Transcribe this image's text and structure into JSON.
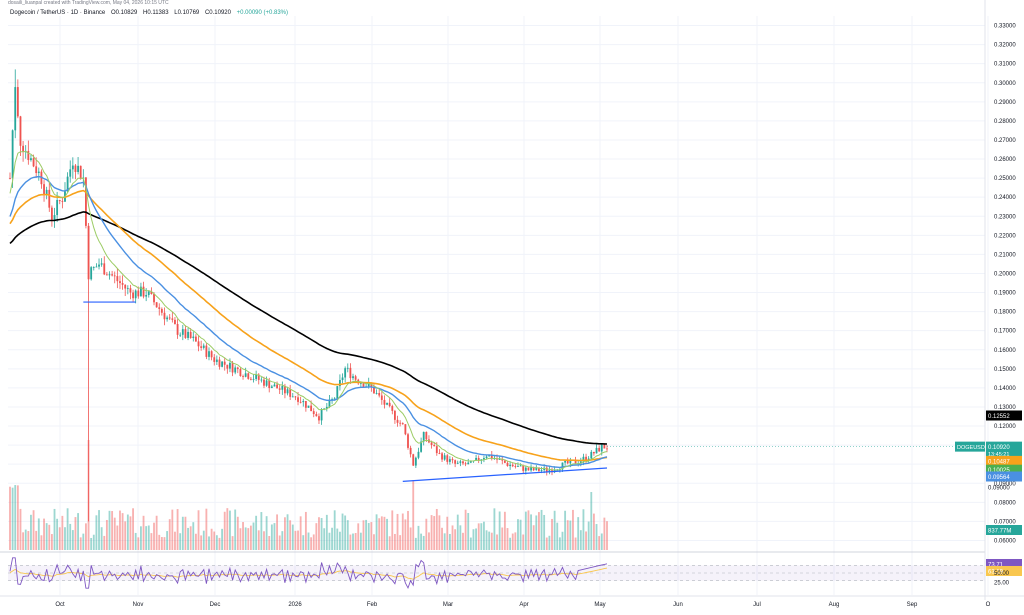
{
  "header": {
    "top_note": "dosaili_liuanpal created with TradingView.com, May 04, 2026 10:15 UTC",
    "symbol": "Dogecoin / TetherUS · 1D · Binance",
    "open": "O0.10829",
    "high": "H0.11383",
    "low": "L0.10769",
    "close": "C0.10920",
    "change": "+0.00090 (+0.83%)"
  },
  "colors": {
    "up": "#26a69a",
    "down": "#ef5350",
    "ma200": "#000000",
    "ma100": "#f7a21b",
    "ma50": "#4a90e2",
    "ma20": "#9ccc65",
    "rsi": "#7e57c2",
    "rsi_ma": "#f9c74f",
    "trendline": "#2962ff"
  },
  "price_labels": [
    {
      "key": "price",
      "text": "DOGEUSDT",
      "sub": "0.10920",
      "sub2": "13:45:21",
      "color": "#26a69a"
    },
    {
      "key": "ma200",
      "text": "0.12552",
      "color": "#000000"
    },
    {
      "key": "ma100",
      "text": "0.10487",
      "color": "#f7a21b"
    },
    {
      "key": "ma20",
      "text": "0.10025",
      "color": "#4caf50"
    },
    {
      "key": "ma50",
      "text": "0.09564",
      "color": "#4a90e2"
    },
    {
      "key": "low",
      "text": "0.09000",
      "color": "#2962ff"
    }
  ],
  "volume_label": "837.77M",
  "rsi_labels": {
    "rsi": "73.71",
    "ma": "63.19",
    "levels": [
      "50.00",
      "25.00"
    ]
  },
  "chart_data": {
    "type": "candlestick",
    "title": "Dogecoin / TetherUS · 1D · Binance",
    "y_axis": {
      "ticks": [
        "0.33000",
        "0.32000",
        "0.31000",
        "0.30000",
        "0.29000",
        "0.28000",
        "0.27000",
        "0.26000",
        "0.25000",
        "0.24000",
        "0.23000",
        "0.22000",
        "0.21000",
        "0.20000",
        "0.19000",
        "0.18000",
        "0.17000",
        "0.16000",
        "0.15000",
        "0.14000",
        "0.13000",
        "0.12000",
        "0.11000",
        "0.10000",
        "0.09000",
        "0.08000",
        "0.07000",
        "0.06000"
      ],
      "range": [
        0.055,
        0.335
      ],
      "scale": "linear"
    },
    "x_axis": {
      "labels": [
        "Oct",
        "Nov",
        "Dec",
        "2026",
        "Feb",
        "Mar",
        "Apr",
        "May",
        "Jun",
        "Jul",
        "Aug",
        "Sep",
        "O"
      ]
    },
    "price_path": [
      [
        0,
        0.25
      ],
      [
        2,
        0.3
      ],
      [
        4,
        0.27
      ],
      [
        8,
        0.26
      ],
      [
        12,
        0.25
      ],
      [
        16,
        0.23
      ],
      [
        20,
        0.24
      ],
      [
        24,
        0.26
      ],
      [
        28,
        0.25
      ],
      [
        30,
        0.2
      ],
      [
        34,
        0.205
      ],
      [
        38,
        0.2
      ],
      [
        42,
        0.195
      ],
      [
        46,
        0.19
      ],
      [
        52,
        0.19
      ],
      [
        58,
        0.18
      ],
      [
        64,
        0.17
      ],
      [
        70,
        0.165
      ],
      [
        78,
        0.155
      ],
      [
        86,
        0.15
      ],
      [
        94,
        0.145
      ],
      [
        102,
        0.14
      ],
      [
        110,
        0.135
      ],
      [
        118,
        0.125
      ],
      [
        124,
        0.135
      ],
      [
        128,
        0.15
      ],
      [
        132,
        0.145
      ],
      [
        138,
        0.14
      ],
      [
        144,
        0.13
      ],
      [
        150,
        0.12
      ],
      [
        154,
        0.1
      ],
      [
        158,
        0.115
      ],
      [
        164,
        0.105
      ],
      [
        170,
        0.1
      ],
      [
        176,
        0.1
      ],
      [
        182,
        0.105
      ],
      [
        190,
        0.1
      ],
      [
        198,
        0.097
      ],
      [
        206,
        0.097
      ],
      [
        212,
        0.1
      ],
      [
        218,
        0.102
      ],
      [
        222,
        0.105
      ],
      [
        226,
        0.109
      ]
    ],
    "moving_averages": [
      {
        "name": "MA200",
        "end_value": 0.12552
      },
      {
        "name": "MA100",
        "end_value": 0.10487
      },
      {
        "name": "MA50",
        "end_value": 0.09564
      },
      {
        "name": "MA20",
        "end_value": 0.10025
      }
    ],
    "trendlines": [
      {
        "from": [
          150,
          0.091
        ],
        "to": [
          228,
          0.098
        ]
      },
      {
        "from": [
          28,
          0.185
        ],
        "to": [
          48,
          0.185
        ]
      }
    ],
    "rsi": {
      "range": [
        0,
        100
      ],
      "levels": [
        50,
        25
      ],
      "last": 73.71,
      "ma_last": 63.19
    },
    "grid": true
  }
}
